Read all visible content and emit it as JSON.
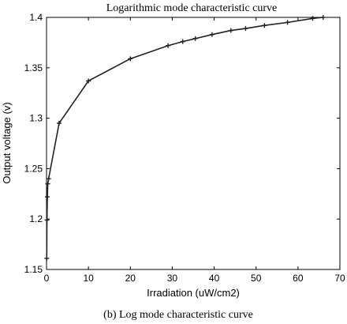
{
  "caption": "(b) Log mode characteristic curve",
  "colors": {
    "line": "#222222",
    "axis": "#000000",
    "background": "#ffffff"
  },
  "chart_data": {
    "type": "line",
    "title": "Logarithmic mode characteristic curve",
    "xlabel": "Irradiation (uW/cm2)",
    "ylabel": "Output voltage (v)",
    "xlim": [
      0,
      70
    ],
    "ylim": [
      1.15,
      1.4
    ],
    "xticks": [
      "0",
      "10",
      "20",
      "30",
      "40",
      "50",
      "60",
      "70"
    ],
    "yticks": [
      "1.15",
      "1.2",
      "1.25",
      "1.3",
      "1.35",
      "1.4"
    ],
    "grid": false,
    "legend": "none",
    "marker": "plus",
    "series": [
      {
        "x": [
          0.05,
          0.1,
          0.2,
          0.3,
          0.5,
          3,
          10,
          20,
          29,
          32.5,
          35.5,
          39.5,
          44,
          47.5,
          52,
          57.5,
          63.5,
          66
        ],
        "y": [
          1.161,
          1.199,
          1.222,
          1.235,
          1.24,
          1.295,
          1.337,
          1.359,
          1.372,
          1.376,
          1.379,
          1.383,
          1.387,
          1.389,
          1.392,
          1.395,
          1.399,
          1.4
        ]
      }
    ]
  }
}
